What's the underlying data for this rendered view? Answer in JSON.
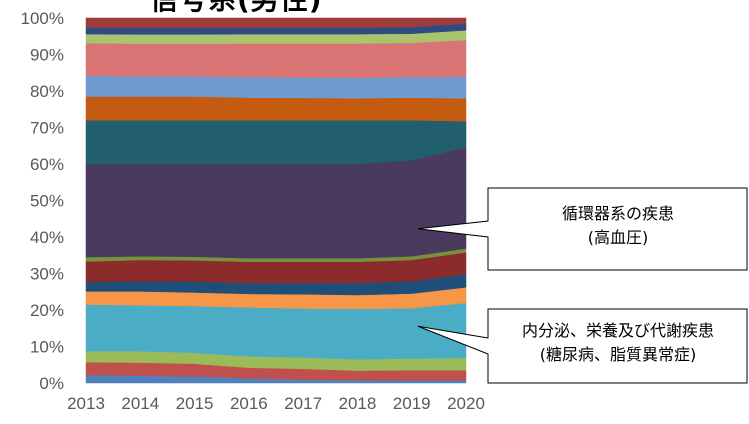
{
  "chart_data": {
    "type": "area",
    "stacked": true,
    "title": "",
    "xlabel": "",
    "ylabel": "",
    "ylim": [
      0,
      100
    ],
    "y_ticks": [
      "0%",
      "10%",
      "20%",
      "30%",
      "40%",
      "50%",
      "60%",
      "70%",
      "80%",
      "90%",
      "100%"
    ],
    "x": [
      "2013",
      "2014",
      "2015",
      "2016",
      "2017",
      "2018",
      "2019",
      "2020"
    ],
    "series": [
      {
        "color": "#4F81BD",
        "values": [
          2.2,
          2.0,
          1.8,
          1.3,
          0.9,
          0.8,
          0.7,
          0.7
        ]
      },
      {
        "color": "#C0504D",
        "values": [
          3.5,
          3.6,
          3.5,
          2.9,
          3.0,
          2.6,
          2.8,
          2.7
        ]
      },
      {
        "color": "#9BBB59",
        "values": [
          3.0,
          3.1,
          3.0,
          3.1,
          3.1,
          3.1,
          3.2,
          3.3
        ]
      },
      {
        "color": "#4BACC6",
        "values": [
          12.8,
          12.6,
          12.8,
          13.4,
          13.4,
          13.8,
          13.8,
          14.8
        ]
      },
      {
        "color": "#F79646",
        "values": [
          3.6,
          3.8,
          3.7,
          3.7,
          3.9,
          3.8,
          4.0,
          4.2
        ]
      },
      {
        "color": "#1F4E79",
        "values": [
          2.6,
          2.8,
          3.0,
          3.0,
          3.1,
          3.3,
          3.4,
          3.6
        ]
      },
      {
        "color": "#8B2B2B",
        "values": [
          5.6,
          5.8,
          5.8,
          5.8,
          5.8,
          5.8,
          5.8,
          5.8
        ]
      },
      {
        "color": "#76923C",
        "values": [
          1.2,
          1.0,
          1.0,
          1.0,
          1.0,
          1.0,
          1.0,
          1.0
        ]
      },
      {
        "color": "#4A3A5E",
        "values": [
          25.5,
          25.3,
          25.4,
          25.8,
          25.8,
          25.8,
          26.3,
          27.2
        ]
      },
      {
        "color": "#215E6E",
        "values": [
          12.0,
          12.0,
          12.0,
          12.0,
          12.0,
          12.0,
          11.0,
          7.0
        ]
      },
      {
        "color": "#C55A11",
        "values": [
          6.5,
          6.5,
          6.5,
          6.2,
          6.1,
          6.0,
          6.2,
          6.1
        ]
      },
      {
        "color": "#6F9BD1",
        "values": [
          5.7,
          5.5,
          5.5,
          5.6,
          5.6,
          5.6,
          5.6,
          5.8
        ]
      },
      {
        "color": "#D87474",
        "values": [
          8.9,
          9.0,
          9.0,
          9.2,
          9.3,
          9.4,
          9.4,
          9.9
        ]
      },
      {
        "color": "#A9C46C",
        "values": [
          2.5,
          2.5,
          2.5,
          2.6,
          2.6,
          2.6,
          2.5,
          2.6
        ]
      },
      {
        "color": "#2E4C82",
        "values": [
          1.8,
          1.8,
          1.8,
          1.8,
          1.8,
          1.8,
          1.8,
          1.8
        ]
      },
      {
        "color": "#9E3B3B",
        "values": [
          2.6,
          2.7,
          2.7,
          2.6,
          2.6,
          2.6,
          2.5,
          1.5
        ]
      }
    ],
    "title_fragment": "信号系(男性)",
    "callouts": [
      {
        "lines": [
          "循環器系の疾患",
          "(高血圧)"
        ],
        "point_year": "2016",
        "point_value": 45
      },
      {
        "lines": [
          "内分泌、栄養及び代謝疾患",
          "(糖尿病、脂質異常症)"
        ],
        "point_year": "2016",
        "point_value": 15
      }
    ]
  }
}
